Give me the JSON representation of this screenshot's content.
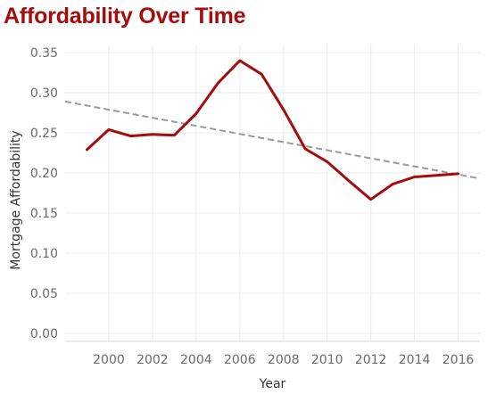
{
  "title": "Affordability Over Time",
  "colors": {
    "title": "#a50d0d",
    "series": "#a50d0d",
    "trend": "#9a9a9a",
    "grid": "#ececec"
  },
  "chart_data": {
    "type": "line",
    "title": "Affordability Over Time",
    "xlabel": "Year",
    "ylabel": "Mortgage Affordability",
    "xlim": [
      1998,
      2017
    ],
    "ylim": [
      -0.01,
      0.36
    ],
    "x_ticks": [
      2000,
      2002,
      2004,
      2006,
      2008,
      2010,
      2012,
      2014,
      2016
    ],
    "x_tick_labels": [
      "2000",
      "2002",
      "2004",
      "2006",
      "2008",
      "2010",
      "2012",
      "2014",
      "2016"
    ],
    "y_ticks": [
      0.0,
      0.05,
      0.1,
      0.15,
      0.2,
      0.25,
      0.3,
      0.35
    ],
    "y_tick_labels": [
      "0.00",
      "0.05",
      "0.10",
      "0.15",
      "0.20",
      "0.25",
      "0.30",
      "0.35"
    ],
    "grid": true,
    "series": [
      {
        "x": [
          1999,
          2000,
          2001,
          2002,
          2003,
          2004,
          2005,
          2006,
          2007,
          2008,
          2009,
          2010,
          2011,
          2012,
          2013,
          2014,
          2015,
          2016
        ],
        "values": [
          0.229,
          0.254,
          0.246,
          0.248,
          0.247,
          0.274,
          0.312,
          0.34,
          0.323,
          0.279,
          0.23,
          0.214,
          0.19,
          0.167,
          0.186,
          0.195,
          0.197,
          0.199
        ],
        "color": "#a50d0d"
      }
    ],
    "trend_line": {
      "style": "dashed",
      "color": "#9a9a9a",
      "x": [
        1998,
        2017
      ],
      "values": [
        0.289,
        0.193
      ]
    }
  }
}
